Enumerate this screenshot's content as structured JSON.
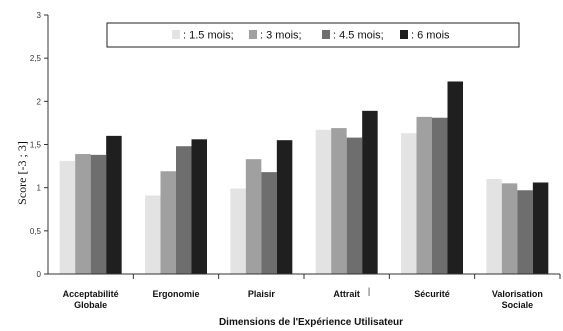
{
  "chart_data": {
    "type": "bar",
    "title": "",
    "xlabel": "Dimensions de l'Expérience Utilisateur",
    "ylabel": "Score   [-3 ; 3]",
    "ylim": [
      0,
      3
    ],
    "yticks": [
      0,
      0.5,
      1,
      1.5,
      2,
      2.5,
      3
    ],
    "ytick_labels": [
      "0",
      "0,5",
      "1",
      "1,5",
      "2",
      "2,5",
      "3"
    ],
    "grid": false,
    "legend_position": "top",
    "stray_mark": "|",
    "categories": [
      [
        "Acceptabilité",
        "Globale"
      ],
      [
        "Ergonomie"
      ],
      [
        "Plaisir"
      ],
      [
        "Attrait"
      ],
      [
        "Sécurité"
      ],
      [
        "Valorisation",
        "Sociale"
      ]
    ],
    "series": [
      {
        "name": ": 1.5 mois;",
        "color": "#e3e3e3",
        "values": [
          1.31,
          0.91,
          0.99,
          1.67,
          1.63,
          1.1
        ]
      },
      {
        "name": ": 3 mois;",
        "color": "#a0a0a0",
        "values": [
          1.39,
          1.19,
          1.33,
          1.69,
          1.82,
          1.05
        ]
      },
      {
        "name": ": 4.5 mois;",
        "color": "#6e6e6e",
        "values": [
          1.38,
          1.48,
          1.18,
          1.58,
          1.81,
          0.97
        ]
      },
      {
        "name": ": 6 mois",
        "color": "#1f1f1f",
        "values": [
          1.6,
          1.56,
          1.55,
          1.89,
          2.23,
          1.06
        ]
      }
    ]
  }
}
